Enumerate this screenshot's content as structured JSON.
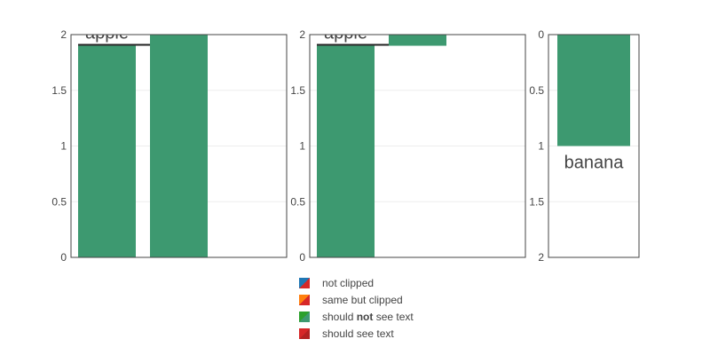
{
  "chart_data": [
    {
      "type": "bar",
      "orientation": "vertical",
      "ylim": [
        0,
        2
      ],
      "y_ticks": [
        "0",
        "0.5",
        "1",
        "1.5",
        "2"
      ],
      "grid": true,
      "bars": [
        {
          "value": 1.9,
          "label": "apple",
          "label_position": "outside",
          "color": "#3d9970",
          "legend": "not clipped"
        },
        {
          "value": 2.0,
          "label": "",
          "color": "#3d9970",
          "legend": "should see text"
        }
      ]
    },
    {
      "type": "bar",
      "orientation": "vertical",
      "ylim": [
        0,
        2
      ],
      "y_ticks": [
        "0",
        "0.5",
        "1",
        "1.5",
        "2"
      ],
      "grid": true,
      "bars": [
        {
          "value": 1.9,
          "label": "apple",
          "label_position": "outside",
          "color": "#3d9970",
          "legend": "same but clipped"
        },
        {
          "value_from": 2.0,
          "value_to": 1.9,
          "label": "",
          "color": "#3d9970",
          "legend": "should not see text"
        }
      ]
    },
    {
      "type": "bar",
      "orientation": "vertical",
      "ylim": [
        0,
        2
      ],
      "y_reversed": true,
      "y_ticks": [
        "0",
        "0.5",
        "1",
        "1.5",
        "2"
      ],
      "grid": true,
      "bars": [
        {
          "value": 1.0,
          "label": "banana",
          "label_position": "outside",
          "color": "#3d9970"
        }
      ]
    }
  ],
  "legend": {
    "placement": "bottom-center",
    "items": [
      {
        "label_before": "not clipped",
        "label_bold": "",
        "label_after": "",
        "colors": [
          "#1f77b4",
          "#d62728"
        ]
      },
      {
        "label_before": "same but clipped",
        "label_bold": "",
        "label_after": "",
        "colors": [
          "#ff7f0e",
          "#d62728"
        ]
      },
      {
        "label_before": "should ",
        "label_bold": "not",
        "label_after": " see text",
        "colors": [
          "#2ca02c",
          "#3d9970"
        ]
      },
      {
        "label_before": "should see text",
        "label_bold": "",
        "label_after": "",
        "colors": [
          "#d62728",
          "#b22222"
        ]
      }
    ]
  },
  "colors": {
    "bar": "#3d9970",
    "axis": "#444444",
    "grid": "#eeeeee",
    "text": "#444444"
  }
}
